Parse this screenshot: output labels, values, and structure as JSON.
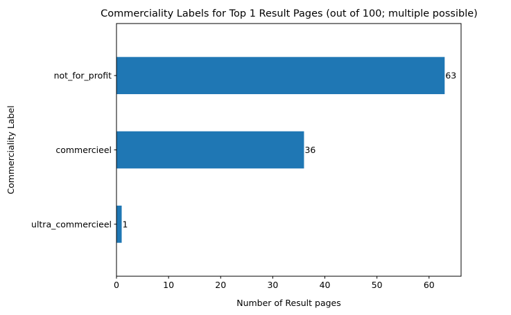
{
  "chart_data": {
    "type": "bar",
    "orientation": "horizontal",
    "title": "Commerciality Labels for Top 1 Result Pages (out of 100; multiple possible)",
    "xlabel": "Number of Result pages",
    "ylabel": "Commerciality Label",
    "categories": [
      "not_for_profit",
      "commercieel",
      "ultra_commercieel"
    ],
    "values": [
      63,
      36,
      1
    ],
    "data_labels": [
      "63",
      "36",
      "1"
    ],
    "xlim": [
      0,
      66.15
    ],
    "xticks": [
      0,
      10,
      20,
      30,
      40,
      50,
      60
    ],
    "xtick_labels": [
      "0",
      "10",
      "20",
      "30",
      "40",
      "50",
      "60"
    ],
    "bar_color": "#1f77b4",
    "grid": false,
    "legend": "none"
  }
}
